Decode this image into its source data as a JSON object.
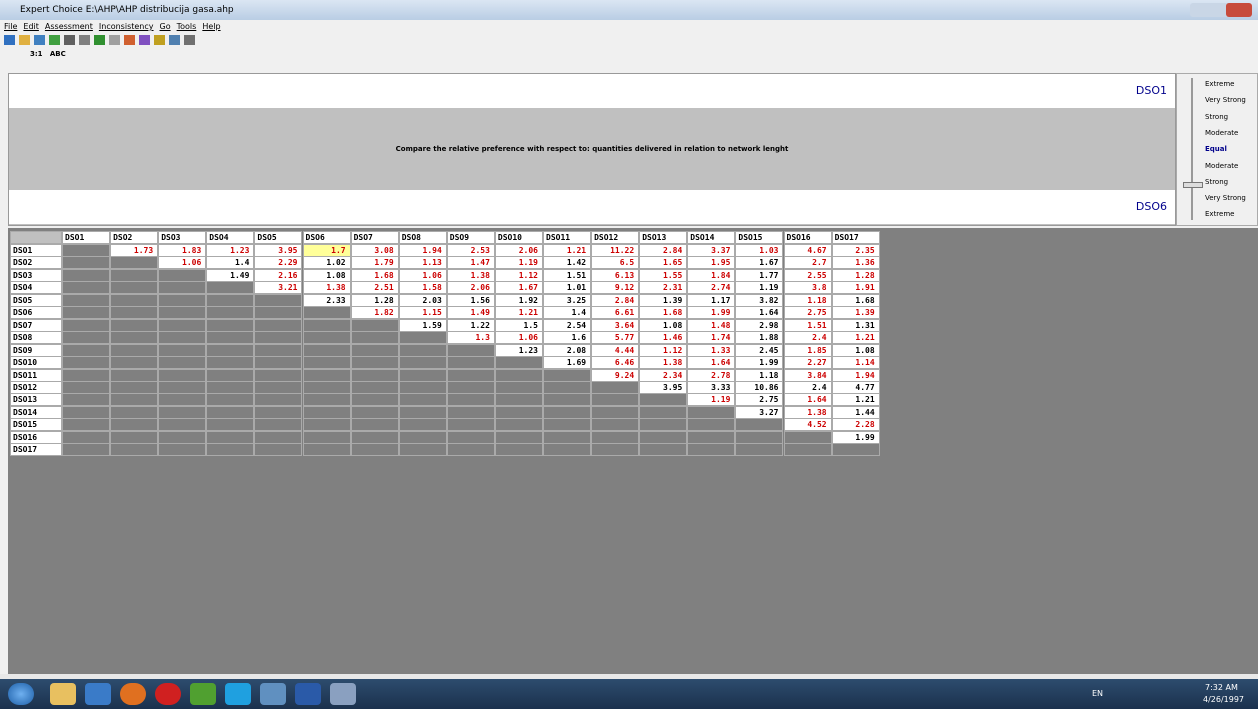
{
  "window": {
    "title": "Expert Choice   E:\\AHP\\AHP distribucija gasa.ahp",
    "menu": [
      "File",
      "Edit",
      "Assessment",
      "Inconsistency",
      "Go",
      "Tools",
      "Help"
    ],
    "toolbar": [
      "3:1",
      "ABC"
    ]
  },
  "comparison": {
    "top": "DSO1",
    "bottom": "DSO6",
    "prompt": "Compare the relative preference with respect to: quantities delivered in relation to network lenght",
    "scale": [
      "Extreme",
      "Very Strong",
      "Strong",
      "Moderate",
      "Equal",
      "Moderate",
      "Strong",
      "Very Strong",
      "Extreme"
    ],
    "scale_selected": 4
  },
  "table": {
    "columns": [
      "DSO1",
      "DSO2",
      "DSO3",
      "DSO4",
      "DSO5",
      "DSO6",
      "DSO7",
      "DSO8",
      "DSO9",
      "DSO10",
      "DSO11",
      "DSO12",
      "DSO13",
      "DSO14",
      "DSO15",
      "DSO16",
      "DSO17"
    ],
    "selected": {
      "row": 0,
      "col": 5
    },
    "rows": [
      {
        "label": "DSO1",
        "cells": [
          {
            "text": "1.73",
            "color": "red"
          },
          {
            "text": "1.83",
            "color": "red"
          },
          {
            "text": "1.23",
            "color": "red"
          },
          {
            "text": "3.95",
            "color": "red"
          },
          {
            "text": "1.7",
            "color": "red"
          },
          {
            "text": "3.08",
            "color": "red"
          },
          {
            "text": "1.94",
            "color": "red"
          },
          {
            "text": "2.53",
            "color": "red"
          },
          {
            "text": "2.06",
            "color": "red"
          },
          {
            "text": "1.21",
            "color": "red"
          },
          {
            "text": "11.22",
            "color": "red"
          },
          {
            "text": "2.84",
            "color": "red"
          },
          {
            "text": "3.37",
            "color": "red"
          },
          {
            "text": "1.03",
            "color": "red"
          },
          {
            "text": "4.67",
            "color": "red"
          },
          {
            "text": "2.35",
            "color": "red"
          }
        ]
      },
      {
        "label": "DSO2",
        "cells": [
          {
            "text": "1.06",
            "color": "red"
          },
          {
            "text": "1.4",
            "color": "black"
          },
          {
            "text": "2.29",
            "color": "red"
          },
          {
            "text": "1.02",
            "color": "black"
          },
          {
            "text": "1.79",
            "color": "red"
          },
          {
            "text": "1.13",
            "color": "red"
          },
          {
            "text": "1.47",
            "color": "red"
          },
          {
            "text": "1.19",
            "color": "red"
          },
          {
            "text": "1.42",
            "color": "black"
          },
          {
            "text": "6.5",
            "color": "red"
          },
          {
            "text": "1.65",
            "color": "red"
          },
          {
            "text": "1.95",
            "color": "red"
          },
          {
            "text": "1.67",
            "color": "black"
          },
          {
            "text": "2.7",
            "color": "red"
          },
          {
            "text": "1.36",
            "color": "red"
          }
        ]
      },
      {
        "label": "DSO3",
        "cells": [
          {
            "text": "1.49",
            "color": "black"
          },
          {
            "text": "2.16",
            "color": "red"
          },
          {
            "text": "1.08",
            "color": "black"
          },
          {
            "text": "1.68",
            "color": "red"
          },
          {
            "text": "1.06",
            "color": "red"
          },
          {
            "text": "1.38",
            "color": "red"
          },
          {
            "text": "1.12",
            "color": "red"
          },
          {
            "text": "1.51",
            "color": "black"
          },
          {
            "text": "6.13",
            "color": "red"
          },
          {
            "text": "1.55",
            "color": "red"
          },
          {
            "text": "1.84",
            "color": "red"
          },
          {
            "text": "1.77",
            "color": "black"
          },
          {
            "text": "2.55",
            "color": "red"
          },
          {
            "text": "1.28",
            "color": "red"
          }
        ]
      },
      {
        "label": "DSO4",
        "cells": [
          {
            "text": "3.21",
            "color": "red"
          },
          {
            "text": "1.38",
            "color": "red"
          },
          {
            "text": "2.51",
            "color": "red"
          },
          {
            "text": "1.58",
            "color": "red"
          },
          {
            "text": "2.06",
            "color": "red"
          },
          {
            "text": "1.67",
            "color": "red"
          },
          {
            "text": "1.01",
            "color": "black"
          },
          {
            "text": "9.12",
            "color": "red"
          },
          {
            "text": "2.31",
            "color": "red"
          },
          {
            "text": "2.74",
            "color": "red"
          },
          {
            "text": "1.19",
            "color": "black"
          },
          {
            "text": "3.8",
            "color": "red"
          },
          {
            "text": "1.91",
            "color": "red"
          }
        ]
      },
      {
        "label": "DSO5",
        "cells": [
          {
            "text": "2.33",
            "color": "black"
          },
          {
            "text": "1.28",
            "color": "black"
          },
          {
            "text": "2.03",
            "color": "black"
          },
          {
            "text": "1.56",
            "color": "black"
          },
          {
            "text": "1.92",
            "color": "black"
          },
          {
            "text": "3.25",
            "color": "black"
          },
          {
            "text": "2.84",
            "color": "red"
          },
          {
            "text": "1.39",
            "color": "black"
          },
          {
            "text": "1.17",
            "color": "black"
          },
          {
            "text": "3.82",
            "color": "black"
          },
          {
            "text": "1.18",
            "color": "red"
          },
          {
            "text": "1.68",
            "color": "black"
          }
        ]
      },
      {
        "label": "DSO6",
        "cells": [
          {
            "text": "1.82",
            "color": "red"
          },
          {
            "text": "1.15",
            "color": "red"
          },
          {
            "text": "1.49",
            "color": "red"
          },
          {
            "text": "1.21",
            "color": "red"
          },
          {
            "text": "1.4",
            "color": "black"
          },
          {
            "text": "6.61",
            "color": "red"
          },
          {
            "text": "1.68",
            "color": "red"
          },
          {
            "text": "1.99",
            "color": "red"
          },
          {
            "text": "1.64",
            "color": "black"
          },
          {
            "text": "2.75",
            "color": "red"
          },
          {
            "text": "1.39",
            "color": "red"
          }
        ]
      },
      {
        "label": "DSO7",
        "cells": [
          {
            "text": "1.59",
            "color": "black"
          },
          {
            "text": "1.22",
            "color": "black"
          },
          {
            "text": "1.5",
            "color": "black"
          },
          {
            "text": "2.54",
            "color": "black"
          },
          {
            "text": "3.64",
            "color": "red"
          },
          {
            "text": "1.08",
            "color": "black"
          },
          {
            "text": "1.48",
            "color": "red"
          },
          {
            "text": "2.98",
            "color": "black"
          },
          {
            "text": "1.51",
            "color": "red"
          },
          {
            "text": "1.31",
            "color": "black"
          }
        ]
      },
      {
        "label": "DSO8",
        "cells": [
          {
            "text": "1.3",
            "color": "red"
          },
          {
            "text": "1.06",
            "color": "red"
          },
          {
            "text": "1.6",
            "color": "black"
          },
          {
            "text": "5.77",
            "color": "red"
          },
          {
            "text": "1.46",
            "color": "red"
          },
          {
            "text": "1.74",
            "color": "red"
          },
          {
            "text": "1.88",
            "color": "black"
          },
          {
            "text": "2.4",
            "color": "red"
          },
          {
            "text": "1.21",
            "color": "red"
          }
        ]
      },
      {
        "label": "DSO9",
        "cells": [
          {
            "text": "1.23",
            "color": "black"
          },
          {
            "text": "2.08",
            "color": "black"
          },
          {
            "text": "4.44",
            "color": "red"
          },
          {
            "text": "1.12",
            "color": "red"
          },
          {
            "text": "1.33",
            "color": "red"
          },
          {
            "text": "2.45",
            "color": "black"
          },
          {
            "text": "1.85",
            "color": "red"
          },
          {
            "text": "1.08",
            "color": "black"
          }
        ]
      },
      {
        "label": "DSO10",
        "cells": [
          {
            "text": "1.69",
            "color": "black"
          },
          {
            "text": "6.46",
            "color": "red"
          },
          {
            "text": "1.38",
            "color": "red"
          },
          {
            "text": "1.64",
            "color": "red"
          },
          {
            "text": "1.99",
            "color": "black"
          },
          {
            "text": "2.27",
            "color": "red"
          },
          {
            "text": "1.14",
            "color": "red"
          }
        ]
      },
      {
        "label": "DSO11",
        "cells": [
          {
            "text": "9.24",
            "color": "red"
          },
          {
            "text": "2.34",
            "color": "red"
          },
          {
            "text": "2.78",
            "color": "red"
          },
          {
            "text": "1.18",
            "color": "black"
          },
          {
            "text": "3.84",
            "color": "red"
          },
          {
            "text": "1.94",
            "color": "red"
          }
        ]
      },
      {
        "label": "DSO12",
        "cells": [
          {
            "text": "3.95",
            "color": "black"
          },
          {
            "text": "3.33",
            "color": "black"
          },
          {
            "text": "10.86",
            "color": "black"
          },
          {
            "text": "2.4",
            "color": "black"
          },
          {
            "text": "4.77",
            "color": "black"
          }
        ]
      },
      {
        "label": "DSO13",
        "cells": [
          {
            "text": "1.19",
            "color": "red"
          },
          {
            "text": "2.75",
            "color": "black"
          },
          {
            "text": "1.64",
            "color": "red"
          },
          {
            "text": "1.21",
            "color": "black"
          }
        ]
      },
      {
        "label": "DSO14",
        "cells": [
          {
            "text": "3.27",
            "color": "black"
          },
          {
            "text": "1.38",
            "color": "red"
          },
          {
            "text": "1.44",
            "color": "black"
          }
        ]
      },
      {
        "label": "DSO15",
        "cells": [
          {
            "text": "4.52",
            "color": "red"
          },
          {
            "text": "2.28",
            "color": "red"
          }
        ]
      },
      {
        "label": "DSO16",
        "cells": [
          {
            "text": "1.99",
            "color": "black"
          }
        ]
      },
      {
        "label": "DSO17",
        "cells": []
      }
    ]
  },
  "taskbar": {
    "language": "EN",
    "time": "7:32 AM",
    "date": "4/26/1997"
  }
}
